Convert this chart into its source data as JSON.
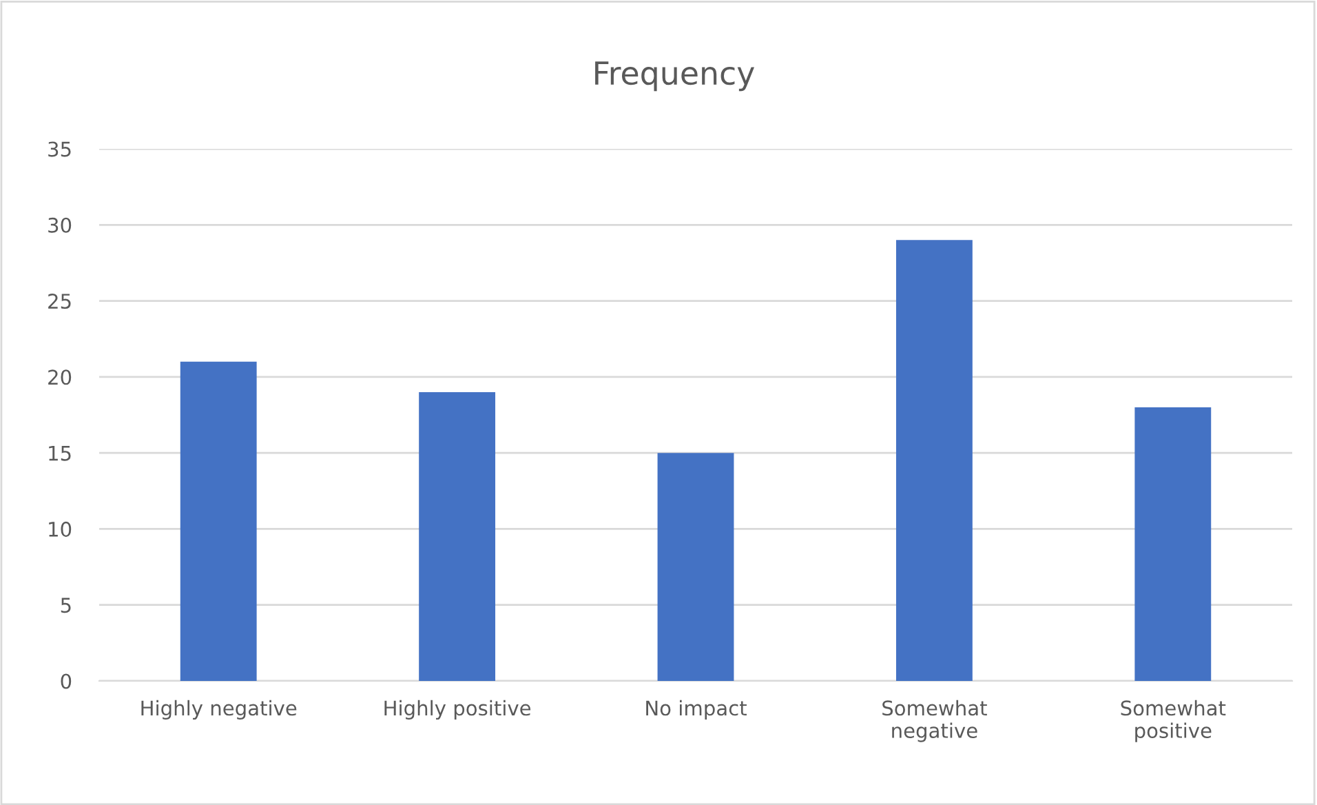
{
  "chart_data": {
    "type": "bar",
    "title": "Frequency",
    "categories": [
      "Highly negative",
      "Highly positive",
      "No impact",
      "Somewhat negative",
      "Somewhat positive"
    ],
    "values": [
      21,
      19,
      15,
      29,
      18
    ],
    "color": "#4472c4",
    "ylim": [
      0,
      35
    ],
    "yticks": [
      0,
      5,
      10,
      15,
      20,
      25,
      30,
      35
    ],
    "grid": "y",
    "legend": false
  }
}
